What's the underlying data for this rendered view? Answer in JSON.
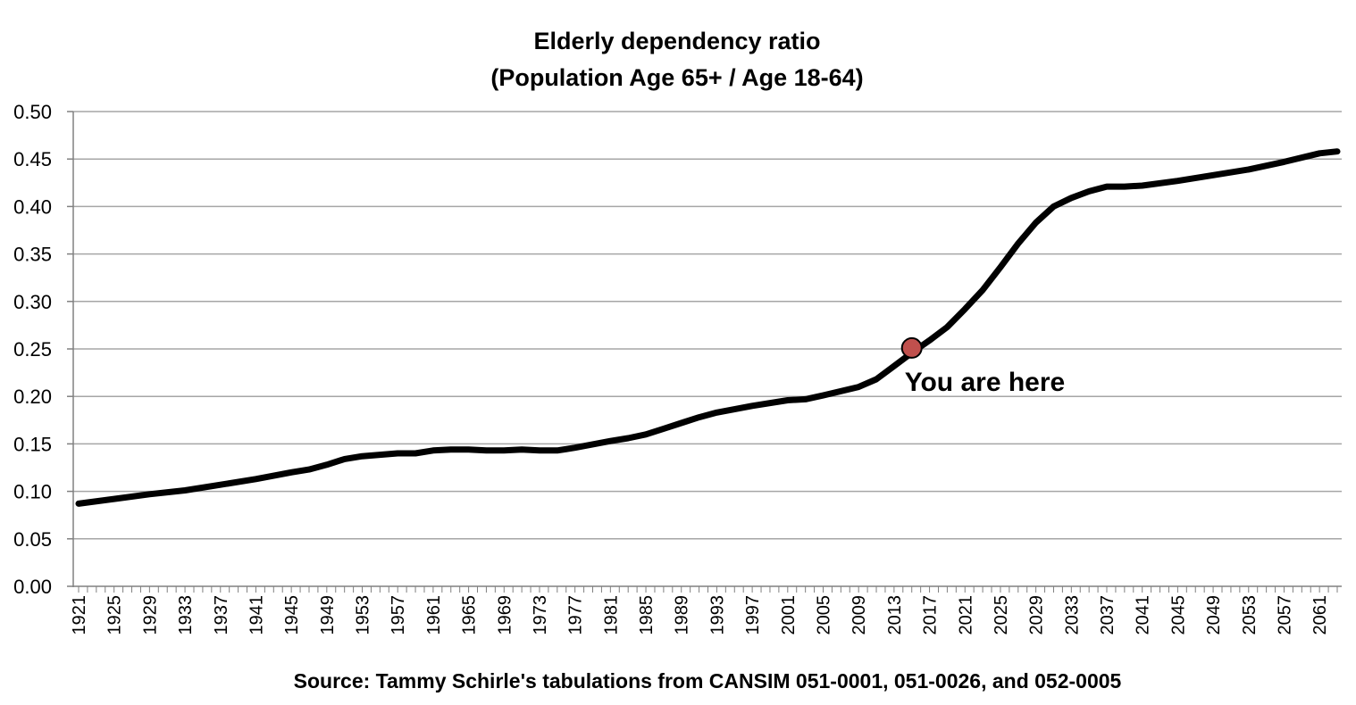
{
  "chart_data": {
    "type": "line",
    "title": "Elderly dependency ratio",
    "subtitle": "(Population Age 65+ / Age 18-64)",
    "xlabel": "Source: Tammy Schirle's tabulations from CANSIM 051-0001, 051-0026, and 052-0005",
    "ylabel": "",
    "ylim": [
      0,
      0.5
    ],
    "yticks": [
      "0.00",
      "0.05",
      "0.10",
      "0.15",
      "0.20",
      "0.25",
      "0.30",
      "0.35",
      "0.40",
      "0.45",
      "0.50"
    ],
    "xlim": [
      1921,
      2063
    ],
    "xticks": [
      "1921",
      "1925",
      "1929",
      "1933",
      "1937",
      "1941",
      "1945",
      "1949",
      "1953",
      "1957",
      "1961",
      "1965",
      "1969",
      "1973",
      "1977",
      "1981",
      "1985",
      "1989",
      "1993",
      "1997",
      "2001",
      "2005",
      "2009",
      "2013",
      "2017",
      "2021",
      "2025",
      "2029",
      "2033",
      "2037",
      "2041",
      "2045",
      "2049",
      "2053",
      "2057",
      "2061"
    ],
    "grid": true,
    "line_color": "#000000",
    "grid_color": "#a6a6a6",
    "marker_color": "#c0504d",
    "series": [
      {
        "x": [
          1921,
          1925,
          1929,
          1933,
          1937,
          1941,
          1945,
          1947,
          1949,
          1951,
          1953,
          1957,
          1959,
          1961,
          1963,
          1965,
          1967,
          1969,
          1971,
          1973,
          1975,
          1977,
          1981,
          1983,
          1985,
          1987,
          1989,
          1991,
          1993,
          1997,
          2001,
          2003,
          2005,
          2009,
          2011,
          2013,
          2015,
          2017,
          2019,
          2021,
          2023,
          2025,
          2027,
          2029,
          2031,
          2033,
          2035,
          2037,
          2039,
          2041,
          2045,
          2049,
          2053,
          2057,
          2061,
          2063
        ],
        "values": [
          0.087,
          0.092,
          0.097,
          0.101,
          0.107,
          0.113,
          0.12,
          0.123,
          0.128,
          0.134,
          0.137,
          0.14,
          0.14,
          0.143,
          0.144,
          0.144,
          0.143,
          0.143,
          0.144,
          0.143,
          0.143,
          0.146,
          0.153,
          0.156,
          0.16,
          0.166,
          0.172,
          0.178,
          0.183,
          0.19,
          0.196,
          0.197,
          0.201,
          0.21,
          0.218,
          0.232,
          0.246,
          0.259,
          0.273,
          0.292,
          0.312,
          0.336,
          0.361,
          0.383,
          0.4,
          0.409,
          0.416,
          0.421,
          0.421,
          0.422,
          0.427,
          0.433,
          0.439,
          0.447,
          0.456,
          0.458
        ]
      }
    ],
    "annotations": [
      {
        "x": 2015,
        "y": 0.251,
        "text": "You are here"
      }
    ]
  }
}
